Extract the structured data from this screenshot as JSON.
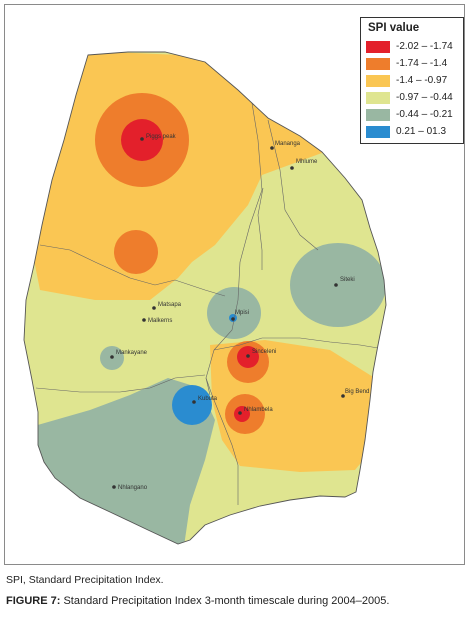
{
  "map": {
    "legend": {
      "title": "SPI value",
      "entries": [
        {
          "label": "-2.02 – -1.74",
          "color": "#e3202b"
        },
        {
          "label": "-1.74 – -1.4",
          "color": "#ee7d2c"
        },
        {
          "label": "-1.4 – -0.97",
          "color": "#fac653"
        },
        {
          "label": "-0.97 – -0.44",
          "color": "#dfe590"
        },
        {
          "label": "-0.44 – -0.21",
          "color": "#99b7a2"
        },
        {
          "label": "0.21 – 01.3",
          "color": "#2a8cd0"
        }
      ]
    },
    "places": [
      {
        "name": "Piggs peak"
      },
      {
        "name": "Mananga"
      },
      {
        "name": "Mhlume"
      },
      {
        "name": "Siteki"
      },
      {
        "name": "Matsapa"
      },
      {
        "name": "Malkerns"
      },
      {
        "name": "Mpisi"
      },
      {
        "name": "Mankayane"
      },
      {
        "name": "Sinceleni"
      },
      {
        "name": "Big Bend"
      },
      {
        "name": "Kubuta"
      },
      {
        "name": "Nhlambela"
      },
      {
        "name": "Nhlangano"
      }
    ]
  },
  "caption": {
    "abbreviation": "SPI, Standard Precipitation Index.",
    "figure_label": "FIGURE 7:",
    "figure_text": " Standard Precipitation Index 3-month timescale during 2004–2005."
  }
}
